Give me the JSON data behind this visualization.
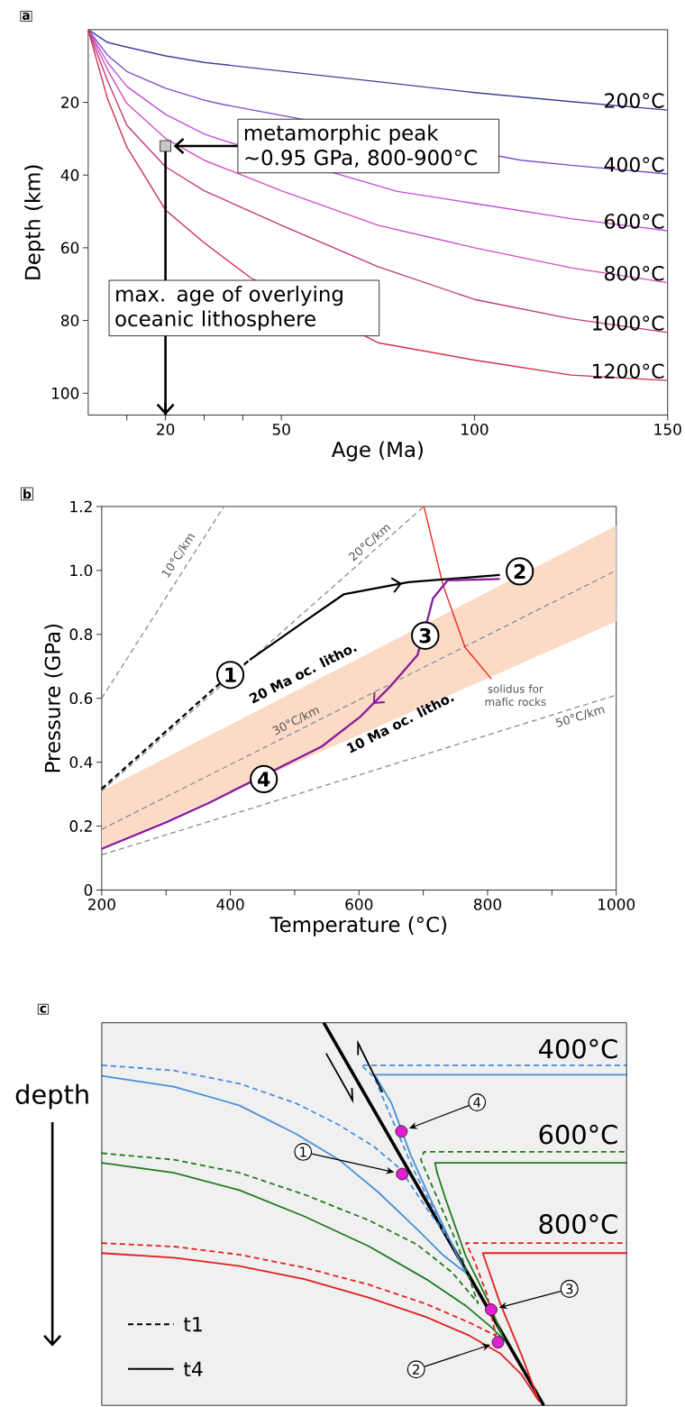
{
  "chart_data": [
    {
      "type": "line",
      "title": "a",
      "xlabel": "Age (Ma)",
      "ylabel": "Depth (km)",
      "xlim": [
        0,
        150
      ],
      "ylim": [
        106,
        0
      ],
      "xticks": [
        {
          "value": 10,
          "label": null
        },
        20,
        {
          "value": 30,
          "label": null
        },
        {
          "value": 40,
          "label": null
        },
        50,
        100,
        150
      ],
      "yticks": [
        20,
        40,
        60,
        80,
        100
      ],
      "x": [
        0,
        5,
        10,
        20,
        30,
        50,
        75,
        100,
        125,
        150
      ],
      "series": [
        {
          "name": "200°C",
          "color": "#40409a",
          "values": [
            0,
            3.5,
            4.8,
            7.2,
            9,
            11.4,
            14.3,
            17.3,
            19.8,
            22.1
          ]
        },
        {
          "name": "400°C",
          "color": "#7a4ec8",
          "x": [
            0,
            5,
            10,
            20,
            30,
            35,
            112,
            125,
            150
          ],
          "values": [
            0,
            7,
            11.5,
            16.1,
            19.4,
            20.6,
            35.9,
            37.3,
            39.7
          ]
        },
        {
          "name": "600°C",
          "color": "#c04fd8",
          "x": [
            0,
            5,
            10,
            20,
            30,
            35,
            80,
            100,
            125,
            150
          ],
          "values": [
            0,
            9,
            15.6,
            23.3,
            28.7,
            30.5,
            44.5,
            47.8,
            52,
            55.3
          ]
        },
        {
          "name": "800°C",
          "color": "#d24fc4",
          "values": [
            0,
            11,
            20.3,
            29.9,
            35.9,
            44.3,
            53.8,
            60,
            65.5,
            69.6
          ]
        },
        {
          "name": "1000°C",
          "color": "#c03a78",
          "values": [
            0,
            14,
            26.3,
            37.7,
            44.3,
            53.8,
            65.2,
            74.2,
            79.5,
            83.3
          ]
        },
        {
          "name": "1200°C",
          "color": "#d03050",
          "x": [
            0,
            5,
            10,
            20,
            30,
            42,
            75,
            100,
            125,
            150
          ],
          "values": [
            0,
            19,
            32.3,
            49.6,
            58.6,
            68.2,
            86.1,
            90.9,
            95,
            96.5
          ]
        },
        {
          "type": "scatter",
          "marker": "square",
          "color": "#c8c8c8",
          "x": [
            20
          ],
          "values": [
            32
          ]
        }
      ],
      "ref_lines": [
        {
          "axis": "x",
          "value": 20,
          "label": "max. age of overlying oceanic lithosphere",
          "color": "#000000"
        }
      ],
      "annotations": [
        "metamorphic peak ~0.95 GPa, 800-900°C"
      ]
    },
    {
      "type": "line",
      "title": "b",
      "xlabel": "Temperature (°C)",
      "ylabel": "Pressure (GPa)",
      "xlim": [
        200,
        1000
      ],
      "ylim": [
        0,
        1.2
      ],
      "xticks": [
        200,
        {
          "value": 300,
          "label": null
        },
        400,
        {
          "value": 500,
          "label": null
        },
        600,
        {
          "value": 700,
          "label": null
        },
        800,
        {
          "value": 900,
          "label": null
        },
        1000
      ],
      "yticks": [
        0,
        0.2,
        0.4,
        0.6,
        0.8,
        {
          "value": 1.0,
          "label": "1.0"
        },
        1.2
      ],
      "series": [
        {
          "color": "#8c8c8c",
          "line_style": "dashed",
          "x": [
            200,
            390
          ],
          "values": [
            0.6,
            1.2
          ]
        },
        {
          "color": "#8c8c8c",
          "line_style": "dashed",
          "x": [
            200,
            701
          ],
          "values": [
            0.31,
            1.2
          ]
        },
        {
          "color": "#8c8c8c",
          "line_style": "dashed",
          "x": [
            200,
            1000
          ],
          "values": [
            0.19,
            1.0
          ],
          "lower": [
            0.13,
            0.84
          ],
          "upper": [
            0.31,
            1.14
          ]
        },
        {
          "color": "#8c8c8c",
          "line_style": "dashed",
          "x": [
            200,
            1000
          ],
          "values": [
            0.11,
            0.61
          ]
        },
        {
          "color": "#e8281e",
          "x": [
            701,
            731,
            765,
            806
          ],
          "values": [
            1.2,
            0.952,
            0.759,
            0.66
          ]
        },
        {
          "color": "#000000",
          "line_style": "dashed",
          "x": [
            200,
            380,
            430
          ],
          "values": [
            0.317,
            0.64,
            0.72
          ]
        },
        {
          "color": "#000000",
          "x": [
            430,
            515,
            576,
            677,
            819
          ],
          "values": [
            0.72,
            0.84,
            0.925,
            0.963,
            0.986
          ]
        },
        {
          "color": "#8a1a9a",
          "x": [
            819,
            738,
            715,
            708,
            691,
            650,
            603,
            542,
            461,
            366,
            299,
            200
          ],
          "values": [
            0.973,
            0.969,
            0.912,
            0.857,
            0.735,
            0.64,
            0.544,
            0.449,
            null,
            0.272,
            0.211,
            0.129
          ]
        }
      ],
      "annotations": [
        {
          "text": "1",
          "x": 400,
          "y": 0.673
        },
        {
          "text": "2",
          "x": 850,
          "y": 0.997
        },
        {
          "text": "3",
          "x": 703,
          "y": 0.796
        },
        {
          "text": "4",
          "x": 452,
          "y": 0.347
        },
        "20 Ma oc. litho.",
        "10 Ma oc. litho.",
        "10°C/km",
        "20°C/km",
        "30°C/km",
        "50°C/km",
        "solidus for mafic rocks"
      ]
    },
    {
      "type": "other",
      "title": "c",
      "ylabel": "depth",
      "annotations": [
        "400°C",
        "600°C",
        "800°C",
        "t1",
        "t4",
        "1",
        "2",
        "3",
        "4"
      ]
    }
  ]
}
